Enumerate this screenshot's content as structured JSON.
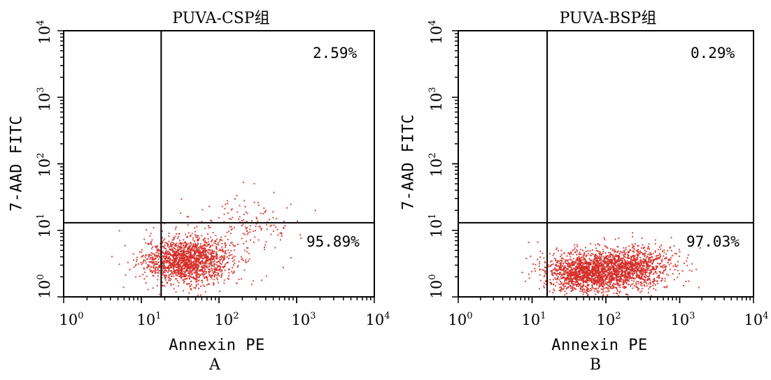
{
  "chart_data": [
    {
      "type": "scatter",
      "title": "PUVA-CSP组",
      "xlabel": "Annexin PE",
      "ylabel": "7-AAD FITC",
      "panel_label": "A",
      "x_scale": "log",
      "y_scale": "log",
      "xlim": [
        1,
        10000
      ],
      "ylim": [
        1,
        10000
      ],
      "x_ticks": [
        {
          "base": "10",
          "exp": "0"
        },
        {
          "base": "10",
          "exp": "1"
        },
        {
          "base": "10",
          "exp": "2"
        },
        {
          "base": "10",
          "exp": "3"
        },
        {
          "base": "10",
          "exp": "4"
        }
      ],
      "y_ticks": [
        {
          "base": "10",
          "exp": "0"
        },
        {
          "base": "10",
          "exp": "1"
        },
        {
          "base": "10",
          "exp": "2"
        },
        {
          "base": "10",
          "exp": "3"
        },
        {
          "base": "10",
          "exp": "4"
        }
      ],
      "gate_x": 18,
      "gate_y": 13,
      "quadrants": {
        "upper_right": "2.59%",
        "lower_right": "95.89%"
      },
      "point_color": "#d42a25",
      "clusters": [
        {
          "x_center": 40,
          "y_center": 3.5,
          "x_spread_log": 0.28,
          "y_spread_log": 0.17,
          "count": 1700
        },
        {
          "x_center": 220,
          "y_center": 12,
          "x_spread_log": 0.35,
          "y_spread_log": 0.22,
          "count": 160
        }
      ]
    },
    {
      "type": "scatter",
      "title": "PUVA-BSP组",
      "xlabel": "Annexin PE",
      "ylabel": "7-AAD FITC",
      "panel_label": "B",
      "x_scale": "log",
      "y_scale": "log",
      "xlim": [
        1,
        10000
      ],
      "ylim": [
        1,
        10000
      ],
      "x_ticks": [
        {
          "base": "10",
          "exp": "0"
        },
        {
          "base": "10",
          "exp": "1"
        },
        {
          "base": "10",
          "exp": "2"
        },
        {
          "base": "10",
          "exp": "3"
        },
        {
          "base": "10",
          "exp": "4"
        }
      ],
      "y_ticks": [
        {
          "base": "10",
          "exp": "0"
        },
        {
          "base": "10",
          "exp": "1"
        },
        {
          "base": "10",
          "exp": "2"
        },
        {
          "base": "10",
          "exp": "3"
        },
        {
          "base": "10",
          "exp": "4"
        }
      ],
      "gate_x": 16,
      "gate_y": 13,
      "quadrants": {
        "upper_right": "0.29%",
        "lower_right": "97.03%"
      },
      "point_color": "#d42a25",
      "clusters": [
        {
          "x_center": 55,
          "y_center": 2.3,
          "x_spread_log": 0.3,
          "y_spread_log": 0.16,
          "count": 1500
        },
        {
          "x_center": 230,
          "y_center": 2.8,
          "x_spread_log": 0.28,
          "y_spread_log": 0.16,
          "count": 1100
        }
      ]
    }
  ]
}
